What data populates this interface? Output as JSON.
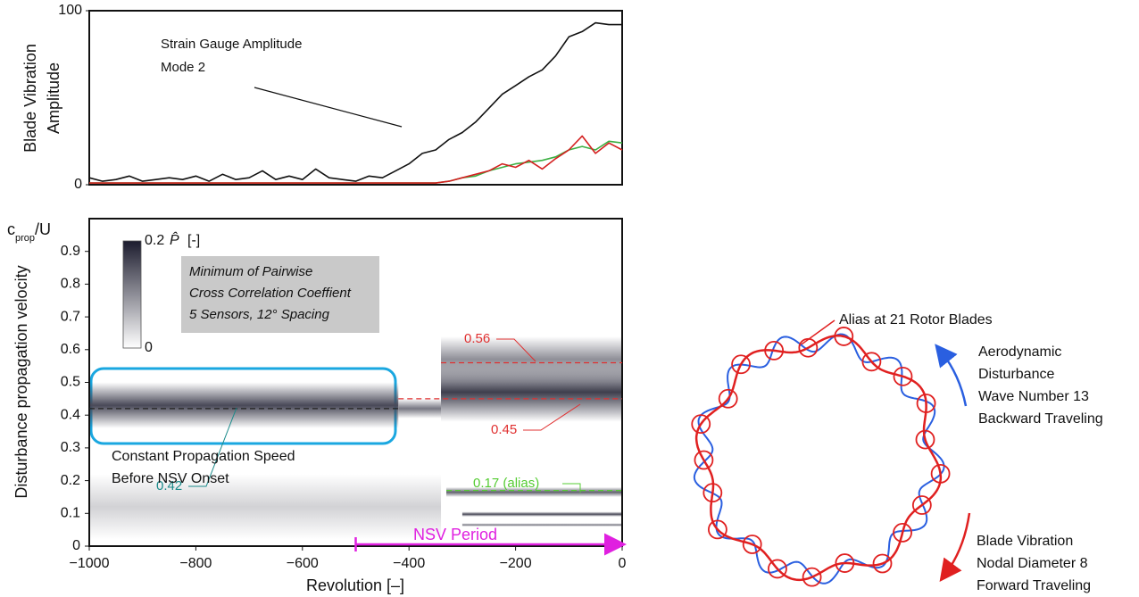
{
  "chart_data": [
    {
      "type": "line",
      "ylabel": [
        "Blade Vibration",
        "Amplitude"
      ],
      "annotation": [
        "Strain Gauge Amplitude",
        "Mode 2"
      ],
      "x": [
        -1000,
        -975,
        -950,
        -925,
        -900,
        -875,
        -850,
        -825,
        -800,
        -775,
        -750,
        -725,
        -700,
        -675,
        -650,
        -625,
        -600,
        -575,
        -550,
        -525,
        -500,
        -475,
        -450,
        -425,
        -400,
        -375,
        -350,
        -325,
        -300,
        -275,
        -250,
        -225,
        -200,
        -175,
        -150,
        -125,
        -100,
        -75,
        -50,
        -25,
        0
      ],
      "xlim": [
        -1000,
        0
      ],
      "ylim": [
        0,
        100
      ],
      "yticks": [
        0,
        100
      ],
      "series": [
        {
          "color": "#111111",
          "values": [
            4,
            2,
            3,
            5,
            2,
            3,
            4,
            3,
            5,
            2,
            6,
            3,
            4,
            8,
            3,
            5,
            3,
            9,
            4,
            3,
            2,
            5,
            4,
            8,
            12,
            18,
            20,
            26,
            30,
            36,
            44,
            52,
            57,
            62,
            66,
            74,
            85,
            88,
            93,
            92,
            92
          ]
        },
        {
          "color": "#d42020",
          "values": [
            1,
            1,
            1,
            1,
            1,
            1,
            1,
            1,
            1,
            1,
            1,
            1,
            1,
            1,
            1,
            1,
            1,
            1,
            1,
            1,
            1,
            1,
            1,
            1,
            1,
            1,
            1,
            2,
            4,
            6,
            8,
            12,
            10,
            14,
            9,
            15,
            20,
            28,
            18,
            24,
            20
          ]
        },
        {
          "color": "#3cb043",
          "values": [
            1,
            1,
            1,
            1,
            1,
            1,
            1,
            1,
            1,
            1,
            1,
            1,
            1,
            1,
            1,
            1,
            1,
            1,
            1,
            1,
            1,
            1,
            1,
            1,
            1,
            1,
            1,
            2,
            4,
            5,
            8,
            10,
            12,
            13,
            14,
            16,
            20,
            22,
            20,
            25,
            24
          ]
        }
      ]
    },
    {
      "type": "heatmap",
      "y_unit": [
        "c",
        "prop",
        "/U"
      ],
      "ylabel": "Disturbance  propagation velocity",
      "xlabel": "Revolution [–]",
      "xlim": [
        -1000,
        0
      ],
      "xticks": [
        {
          "value": -1000,
          "label": "−1000"
        },
        {
          "value": -800,
          "label": "−800"
        },
        {
          "value": -600,
          "label": "−600"
        },
        {
          "value": -400,
          "label": "−400"
        },
        {
          "value": -200,
          "label": "−200"
        },
        0
      ],
      "ylim": [
        0,
        1
      ],
      "yticks": [
        0,
        0.1,
        0.2,
        0.3,
        0.4,
        0.5,
        0.6,
        0.7,
        0.8,
        0.9
      ],
      "colorbar": {
        "range": [
          0,
          0.2
        ],
        "ticks": [
          0,
          0.2
        ],
        "label": [
          "P̂",
          "[-]"
        ],
        "colors": [
          "#ffffff",
          "#1c1c2e"
        ]
      },
      "legend_box": [
        "Minimum of Pairwise",
        "Cross Correlation Coeffient",
        "5 Sensors, 12° Spacing"
      ],
      "bands": [
        {
          "x": [
            -1000,
            -420
          ],
          "y": [
            0.36,
            0.5
          ],
          "intensity": 0.16
        },
        {
          "x": [
            -420,
            -340
          ],
          "y": [
            0.39,
            0.45
          ],
          "intensity": 0.12
        },
        {
          "x": [
            -340,
            0
          ],
          "y": [
            0.5,
            0.64
          ],
          "intensity": 0.1
        },
        {
          "x": [
            -340,
            0
          ],
          "y": [
            0.38,
            0.56
          ],
          "intensity": 0.17
        },
        {
          "x": [
            -330,
            0
          ],
          "y": [
            0.15,
            0.18
          ],
          "intensity": 0.14
        },
        {
          "x": [
            -300,
            0
          ],
          "y": [
            0.09,
            0.105
          ],
          "intensity": 0.16
        },
        {
          "x": [
            -300,
            0
          ],
          "y": [
            0.06,
            0.07
          ],
          "intensity": 0.12
        },
        {
          "x": [
            -1000,
            -340
          ],
          "y": [
            0.02,
            0.22
          ],
          "intensity": 0.04
        }
      ],
      "reference_lines": [
        {
          "y": 0.42,
          "x": [
            -1000,
            -420
          ],
          "color": "#222222",
          "label": "0.42",
          "label_color": "#1a8a8a"
        },
        {
          "y": 0.56,
          "x": [
            -340,
            0
          ],
          "color": "#e03030",
          "label": "0.56",
          "label_color": "#e03030"
        },
        {
          "y": 0.45,
          "x": [
            -420,
            0
          ],
          "color": "#e03030",
          "label": "0.45",
          "label_color": "#e03030"
        },
        {
          "y": 0.17,
          "x": [
            -330,
            0
          ],
          "color": "#55cc33",
          "label": "0.17 (alias)",
          "label_color": "#55cc33"
        }
      ],
      "annotation": [
        "Constant Propagation Speed",
        "Before NSV Onset"
      ],
      "nsv_period": {
        "label": "NSV Period",
        "x": [
          -500,
          0
        ],
        "color": "#e020e0"
      }
    }
  ],
  "diagram": {
    "alias_label": "Alias at 21 Rotor Blades",
    "disturbance_label": [
      "Aerodynamic",
      "Disturbance",
      "Wave Number 13",
      "Backward Traveling"
    ],
    "vibration_label": [
      "Blade Vibration",
      "Nodal Diameter 8",
      "Forward Traveling"
    ]
  }
}
